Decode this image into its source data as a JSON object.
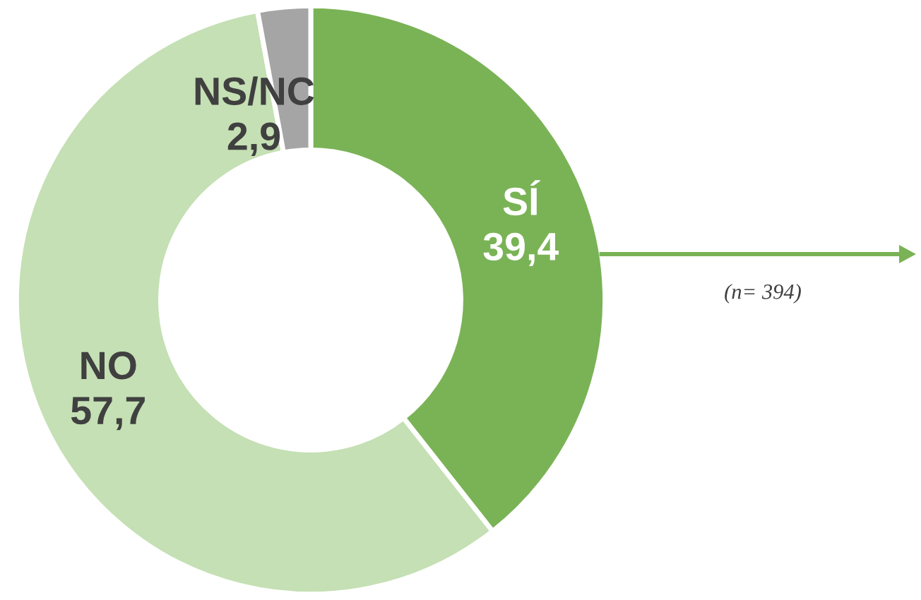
{
  "chart_data": {
    "type": "donut",
    "categories": [
      "SÍ",
      "NO",
      "NS/NC"
    ],
    "values": [
      39.4,
      57.7,
      2.9
    ],
    "value_labels": [
      "39,4",
      "57,7",
      "2,9"
    ],
    "colors": [
      "#7ab356",
      "#c5e0b4",
      "#a5a5a5"
    ],
    "annotations": [
      "(n= 394)"
    ]
  }
}
